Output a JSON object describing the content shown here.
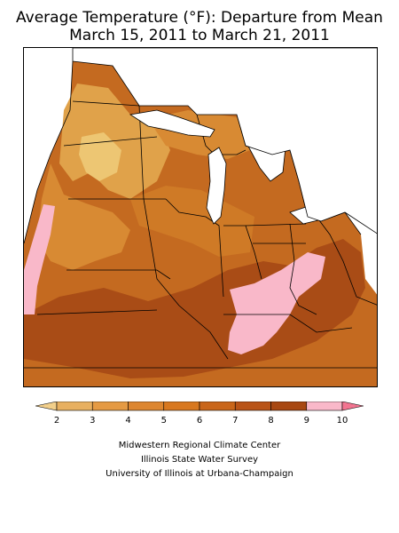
{
  "title": {
    "line1": "Average Temperature (°F): Departure from Mean",
    "line2": "March 15, 2011 to March 21, 2011"
  },
  "legend": {
    "labels": [
      "2",
      "3",
      "4",
      "5",
      "6",
      "7",
      "8",
      "9",
      "10"
    ],
    "bin_colors": [
      "#f2cf8a",
      "#e8b060",
      "#e59a43",
      "#dd8630",
      "#d8781f",
      "#c9661a",
      "#b95417",
      "#a84812",
      "#f9b8c9",
      "#f27490"
    ]
  },
  "map_regions": {
    "frame_fill": "#c46a20",
    "colors": {
      "lightest": "#edc673",
      "light": "#e0a24a",
      "mid": "#d88a33",
      "midstrong": "#cf7a26",
      "darkest": "#a94c16",
      "pink": "#f9b8c9"
    }
  },
  "credits": {
    "line1": "Midwestern Regional Climate Center",
    "line2": "Illinois State Water Survey",
    "line3": "University of Illinois at Urbana-Champaign"
  }
}
